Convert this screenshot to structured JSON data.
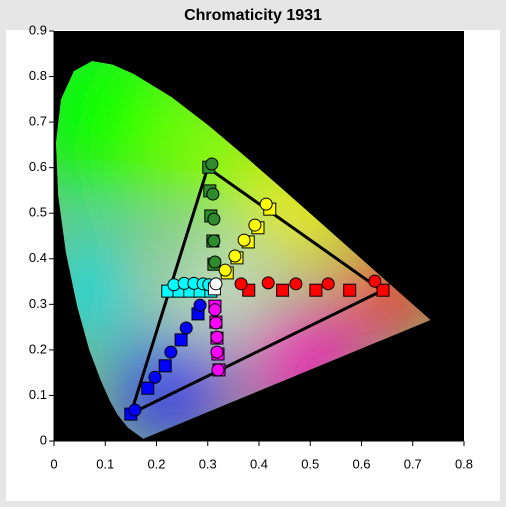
{
  "chart_data": {
    "type": "scatter",
    "title": "Chromaticity 1931",
    "xlim": [
      0,
      0.8
    ],
    "xticks": [
      0,
      0.1,
      0.2,
      0.3,
      0.4,
      0.5,
      0.6,
      0.7,
      0.8
    ],
    "ylim": [
      0,
      0.9
    ],
    "yticks": [
      0,
      0.1,
      0.2,
      0.3,
      0.4,
      0.5,
      0.6,
      0.7,
      0.8,
      0.9
    ],
    "series": [
      {
        "style": "line",
        "color": "#000000",
        "x": [
          0.64,
          0.3,
          0.15,
          0.64
        ],
        "values": [
          0.33,
          0.6,
          0.06,
          0.33
        ]
      },
      {
        "style": "square",
        "color": "#ff0000",
        "x": [
          0.38,
          0.446,
          0.511,
          0.577,
          0.642
        ],
        "values": [
          0.331,
          0.331,
          0.331,
          0.331,
          0.331
        ]
      },
      {
        "style": "circle",
        "color": "#ff0000",
        "x": [
          0.365,
          0.418,
          0.472,
          0.535,
          0.626
        ],
        "values": [
          0.345,
          0.347,
          0.345,
          0.345,
          0.351
        ]
      },
      {
        "style": "square",
        "color": "#2e8b2e",
        "x": [
          0.302,
          0.304,
          0.306,
          0.31,
          0.312
        ],
        "values": [
          0.601,
          0.549,
          0.494,
          0.439,
          0.388
        ]
      },
      {
        "style": "circle",
        "color": "#2e8b2e",
        "x": [
          0.308,
          0.31,
          0.312,
          0.312,
          0.314
        ],
        "values": [
          0.608,
          0.542,
          0.487,
          0.439,
          0.393
        ]
      },
      {
        "style": "square",
        "color": "#ffff00",
        "x": [
          0.338,
          0.357,
          0.379,
          0.398,
          0.421
        ],
        "values": [
          0.369,
          0.402,
          0.437,
          0.468,
          0.509
        ]
      },
      {
        "style": "circle",
        "color": "#ffff00",
        "x": [
          0.334,
          0.353,
          0.371,
          0.392,
          0.414
        ],
        "values": [
          0.375,
          0.406,
          0.441,
          0.474,
          0.52
        ]
      },
      {
        "style": "square",
        "color": "#00ffff",
        "x": [
          0.222,
          0.244,
          0.265,
          0.285,
          0.306
        ],
        "values": [
          0.329,
          0.329,
          0.329,
          0.329,
          0.329
        ]
      },
      {
        "style": "circle",
        "color": "#00ffff",
        "x": [
          0.234,
          0.254,
          0.273,
          0.291,
          0.302
        ],
        "values": [
          0.343,
          0.346,
          0.346,
          0.345,
          0.343
        ]
      },
      {
        "style": "square",
        "color": "#0000ff",
        "x": [
          0.15,
          0.183,
          0.217,
          0.248,
          0.281
        ],
        "values": [
          0.059,
          0.116,
          0.165,
          0.222,
          0.279
        ]
      },
      {
        "style": "circle",
        "color": "#0000ff",
        "x": [
          0.158,
          0.197,
          0.228,
          0.258,
          0.285
        ],
        "values": [
          0.068,
          0.14,
          0.195,
          0.248,
          0.298
        ]
      },
      {
        "style": "square",
        "color": "#ff00ff",
        "x": [
          0.322,
          0.32,
          0.318,
          0.316,
          0.314
        ],
        "values": [
          0.156,
          0.191,
          0.226,
          0.261,
          0.296
        ]
      },
      {
        "style": "circle",
        "color": "#ff00ff",
        "x": [
          0.32,
          0.318,
          0.318,
          0.316,
          0.314
        ],
        "values": [
          0.156,
          0.195,
          0.228,
          0.259,
          0.288
        ]
      },
      {
        "style": "square",
        "color": "#ffffff",
        "x": [
          0.313
        ],
        "values": [
          0.334
        ]
      },
      {
        "style": "circle",
        "color": "#ffffff",
        "x": [
          0.316
        ],
        "values": [
          0.345
        ]
      }
    ]
  }
}
